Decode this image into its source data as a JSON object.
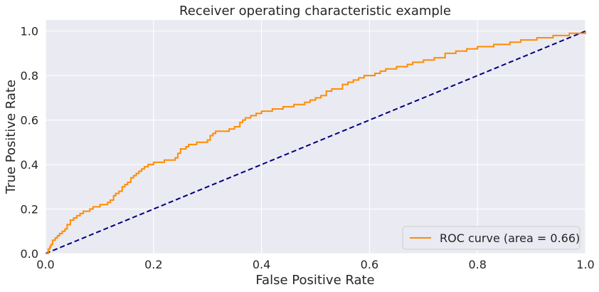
{
  "chart_data": {
    "type": "line",
    "title": "Receiver operating characteristic example",
    "xlabel": "False Positive Rate",
    "ylabel": "True Positive Rate",
    "xlim": [
      0.0,
      1.0
    ],
    "ylim": [
      0.0,
      1.05
    ],
    "xticks": [
      0.0,
      0.2,
      0.4,
      0.6,
      0.8,
      1.0
    ],
    "xtick_labels": [
      "0.0",
      "0.2",
      "0.4",
      "0.6",
      "0.8",
      "1.0"
    ],
    "yticks": [
      0.0,
      0.2,
      0.4,
      0.6,
      0.8,
      1.0
    ],
    "ytick_labels": [
      "0.0",
      "0.2",
      "0.4",
      "0.6",
      "0.8",
      "1.0"
    ],
    "grid": true,
    "legend_position": "lower-right",
    "series": [
      {
        "name": "ROC curve (area = 0.66)",
        "color": "#ff8c00",
        "style": "solid",
        "step": true,
        "x": [
          0.0,
          0.005,
          0.008,
          0.01,
          0.013,
          0.018,
          0.022,
          0.026,
          0.031,
          0.036,
          0.04,
          0.046,
          0.052,
          0.058,
          0.064,
          0.07,
          0.076,
          0.082,
          0.088,
          0.095,
          0.101,
          0.108,
          0.115,
          0.12,
          0.126,
          0.13,
          0.136,
          0.142,
          0.147,
          0.152,
          0.158,
          0.163,
          0.168,
          0.173,
          0.178,
          0.183,
          0.19,
          0.2,
          0.21,
          0.22,
          0.23,
          0.24,
          0.245,
          0.25,
          0.26,
          0.265,
          0.275,
          0.28,
          0.29,
          0.3,
          0.305,
          0.31,
          0.315,
          0.32,
          0.33,
          0.34,
          0.35,
          0.36,
          0.365,
          0.37,
          0.38,
          0.39,
          0.4,
          0.41,
          0.42,
          0.43,
          0.44,
          0.45,
          0.46,
          0.47,
          0.48,
          0.49,
          0.5,
          0.51,
          0.52,
          0.53,
          0.54,
          0.55,
          0.56,
          0.57,
          0.58,
          0.59,
          0.6,
          0.61,
          0.62,
          0.63,
          0.64,
          0.65,
          0.66,
          0.67,
          0.68,
          0.69,
          0.7,
          0.71,
          0.72,
          0.73,
          0.74,
          0.76,
          0.78,
          0.8,
          0.82,
          0.83,
          0.84,
          0.85,
          0.86,
          0.87,
          0.88,
          0.89,
          0.9,
          0.91,
          0.92,
          0.93,
          0.94,
          0.95,
          0.96,
          0.97,
          0.98,
          0.99,
          1.0
        ],
        "y": [
          0.0,
          0.02,
          0.03,
          0.04,
          0.06,
          0.07,
          0.08,
          0.09,
          0.1,
          0.11,
          0.13,
          0.15,
          0.16,
          0.17,
          0.18,
          0.19,
          0.19,
          0.2,
          0.21,
          0.21,
          0.22,
          0.22,
          0.23,
          0.24,
          0.26,
          0.27,
          0.28,
          0.3,
          0.31,
          0.32,
          0.34,
          0.35,
          0.36,
          0.37,
          0.38,
          0.39,
          0.4,
          0.41,
          0.41,
          0.42,
          0.42,
          0.43,
          0.45,
          0.47,
          0.48,
          0.49,
          0.49,
          0.5,
          0.5,
          0.51,
          0.53,
          0.54,
          0.55,
          0.55,
          0.55,
          0.56,
          0.57,
          0.59,
          0.6,
          0.61,
          0.62,
          0.63,
          0.64,
          0.64,
          0.65,
          0.65,
          0.66,
          0.66,
          0.67,
          0.67,
          0.68,
          0.69,
          0.7,
          0.71,
          0.73,
          0.74,
          0.74,
          0.76,
          0.77,
          0.78,
          0.79,
          0.8,
          0.8,
          0.81,
          0.82,
          0.83,
          0.83,
          0.84,
          0.84,
          0.85,
          0.86,
          0.86,
          0.87,
          0.87,
          0.88,
          0.88,
          0.9,
          0.91,
          0.92,
          0.93,
          0.93,
          0.94,
          0.94,
          0.94,
          0.95,
          0.95,
          0.96,
          0.96,
          0.96,
          0.97,
          0.97,
          0.97,
          0.98,
          0.98,
          0.98,
          0.99,
          0.99,
          0.99,
          1.0
        ]
      },
      {
        "name": "",
        "color": "#000080",
        "style": "dashed",
        "x": [
          0.0,
          1.0
        ],
        "y": [
          0.0,
          1.0
        ]
      }
    ]
  },
  "colors": {
    "plot_background": "#eaeaf2",
    "grid": "#ffffff",
    "text": "#262626"
  }
}
